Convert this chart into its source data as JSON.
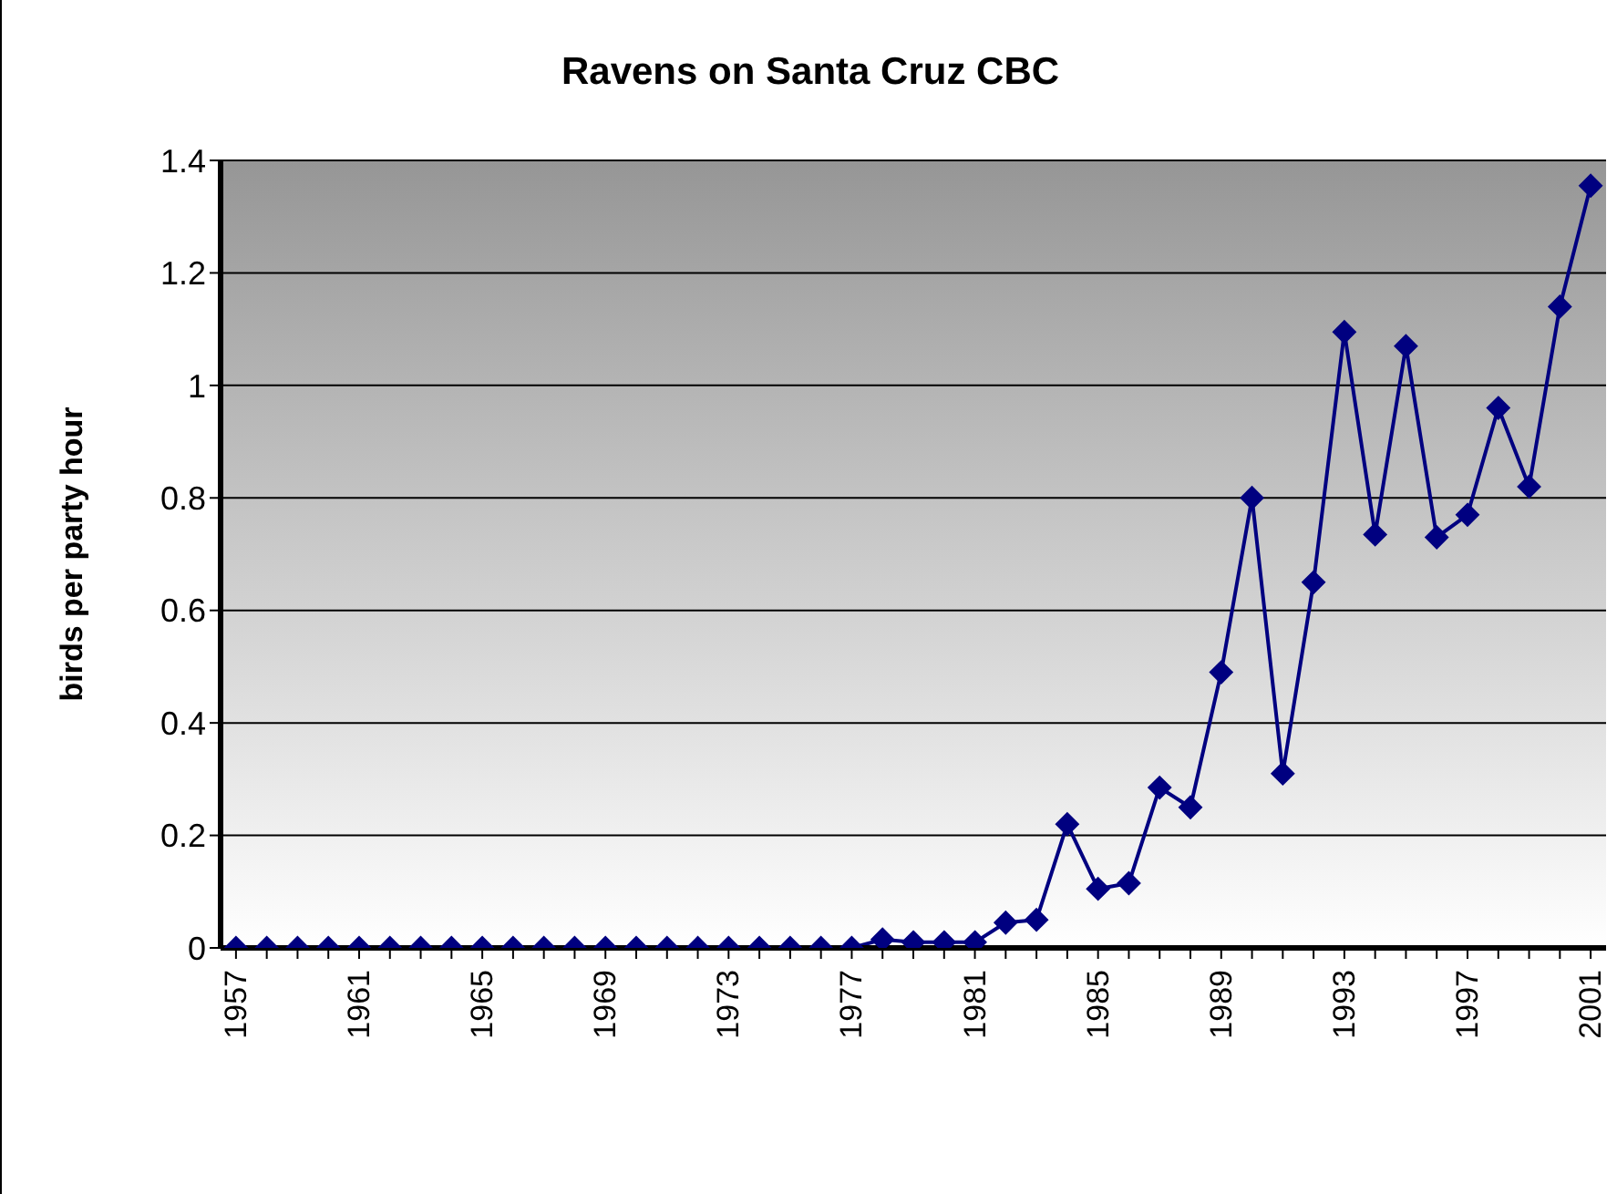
{
  "chart_data": {
    "type": "line",
    "title": "Ravens on Santa Cruz CBC",
    "ylabel": "birds per party hour",
    "categories": [
      "1957",
      null,
      null,
      null,
      "1961",
      null,
      null,
      null,
      "1965",
      null,
      null,
      null,
      "1969",
      null,
      null,
      null,
      "1973",
      null,
      null,
      null,
      "1977",
      null,
      null,
      null,
      "1981",
      null,
      null,
      null,
      "1985",
      null,
      null,
      null,
      "1989",
      null,
      null,
      null,
      "1993",
      null,
      null,
      null,
      "1997",
      null,
      null,
      null,
      "2001"
    ],
    "series": [
      {
        "color": "#000080",
        "values": [
          0,
          0,
          0,
          0,
          0,
          0,
          0,
          0,
          0,
          0,
          0,
          0,
          0,
          0,
          0,
          0,
          0,
          0,
          0,
          0,
          0,
          0.015,
          0.01,
          0.01,
          0.01,
          0.045,
          0.05,
          0.22,
          0.105,
          0.115,
          0.285,
          0.25,
          0.49,
          0.8,
          0.31,
          0.65,
          1.095,
          0.735,
          1.07,
          0.73,
          0.77,
          0.96,
          0.82,
          1.14,
          1.355
        ]
      }
    ],
    "ylim": [
      0,
      1.4
    ],
    "yticks": [
      0,
      0.2,
      0.4,
      0.6,
      0.8,
      1,
      1.2,
      1.4
    ],
    "grid": "y",
    "marker": "diamond",
    "line_style": "solid",
    "legend": false
  }
}
